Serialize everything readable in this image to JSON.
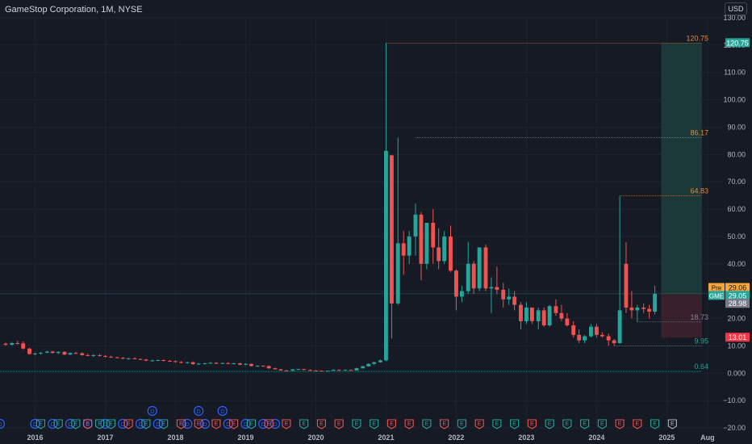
{
  "header": {
    "title": "GameStop Corporation, 1M, NYSE",
    "currency_label": "USD"
  },
  "chart_data": {
    "type": "candlestick",
    "ylim": [
      -20,
      130
    ],
    "y_ticks": [
      130,
      120,
      110,
      100,
      90,
      80,
      70,
      60,
      50,
      40,
      30,
      20,
      10,
      0,
      -10,
      -20
    ],
    "y_tick_labels": [
      "130.00",
      "120.00",
      "110.00",
      "100.00",
      "90.00",
      "80.00",
      "70.00",
      "60.00",
      "50.00",
      "40.00",
      "30.00",
      "20.00",
      "10.00",
      "0.000",
      "−10.00",
      "−20.00"
    ],
    "x_start": 2015.5,
    "x_end": 2025.8,
    "x_ticks": [
      {
        "year": 2016,
        "label": "2016"
      },
      {
        "year": 2017,
        "label": "2017"
      },
      {
        "year": 2018,
        "label": "2018"
      },
      {
        "year": 2019,
        "label": "2019"
      },
      {
        "year": 2020,
        "label": "2020"
      },
      {
        "year": 2021,
        "label": "2021"
      },
      {
        "year": 2022,
        "label": "2022"
      },
      {
        "year": 2023,
        "label": "2023"
      },
      {
        "year": 2024,
        "label": "2024"
      },
      {
        "year": 2025,
        "label": "2025"
      },
      {
        "year": 2025.58,
        "label": "Aug"
      }
    ],
    "candles": [
      {
        "t": 2015.58,
        "o": 10.8,
        "h": 11.2,
        "l": 10.0,
        "c": 10.4
      },
      {
        "t": 2015.67,
        "o": 10.4,
        "h": 11.4,
        "l": 10.1,
        "c": 11.0
      },
      {
        "t": 2015.75,
        "o": 11.0,
        "h": 11.8,
        "l": 10.5,
        "c": 10.9
      },
      {
        "t": 2015.83,
        "o": 10.9,
        "h": 11.6,
        "l": 8.7,
        "c": 9.0
      },
      {
        "t": 2015.92,
        "o": 9.0,
        "h": 9.3,
        "l": 6.8,
        "c": 7.0
      },
      {
        "t": 2016.0,
        "o": 7.0,
        "h": 7.5,
        "l": 6.5,
        "c": 7.2
      },
      {
        "t": 2016.08,
        "o": 7.2,
        "h": 7.7,
        "l": 6.8,
        "c": 7.5
      },
      {
        "t": 2016.17,
        "o": 7.5,
        "h": 8.2,
        "l": 7.3,
        "c": 7.9
      },
      {
        "t": 2016.25,
        "o": 7.9,
        "h": 8.2,
        "l": 7.2,
        "c": 7.4
      },
      {
        "t": 2016.33,
        "o": 7.4,
        "h": 8.0,
        "l": 7.0,
        "c": 7.8
      },
      {
        "t": 2016.42,
        "o": 7.8,
        "h": 8.0,
        "l": 6.6,
        "c": 6.8
      },
      {
        "t": 2016.5,
        "o": 6.8,
        "h": 7.6,
        "l": 6.6,
        "c": 7.4
      },
      {
        "t": 2016.58,
        "o": 7.4,
        "h": 7.8,
        "l": 7.0,
        "c": 7.3
      },
      {
        "t": 2016.67,
        "o": 7.3,
        "h": 7.6,
        "l": 6.4,
        "c": 6.6
      },
      {
        "t": 2016.75,
        "o": 6.6,
        "h": 7.1,
        "l": 6.2,
        "c": 6.4
      },
      {
        "t": 2016.83,
        "o": 6.4,
        "h": 6.9,
        "l": 5.9,
        "c": 6.6
      },
      {
        "t": 2016.92,
        "o": 6.6,
        "h": 7.0,
        "l": 6.1,
        "c": 6.3
      },
      {
        "t": 2017.0,
        "o": 6.3,
        "h": 6.6,
        "l": 5.8,
        "c": 6.0
      },
      {
        "t": 2017.08,
        "o": 6.0,
        "h": 6.4,
        "l": 5.6,
        "c": 5.8
      },
      {
        "t": 2017.17,
        "o": 5.8,
        "h": 6.0,
        "l": 5.4,
        "c": 5.6
      },
      {
        "t": 2017.25,
        "o": 5.6,
        "h": 5.9,
        "l": 5.1,
        "c": 5.3
      },
      {
        "t": 2017.33,
        "o": 5.3,
        "h": 5.6,
        "l": 5.0,
        "c": 5.4
      },
      {
        "t": 2017.42,
        "o": 5.4,
        "h": 5.8,
        "l": 5.1,
        "c": 5.2
      },
      {
        "t": 2017.5,
        "o": 5.2,
        "h": 5.4,
        "l": 4.8,
        "c": 5.0
      },
      {
        "t": 2017.58,
        "o": 5.0,
        "h": 5.2,
        "l": 4.4,
        "c": 4.6
      },
      {
        "t": 2017.67,
        "o": 4.6,
        "h": 4.9,
        "l": 4.2,
        "c": 4.7
      },
      {
        "t": 2017.75,
        "o": 4.7,
        "h": 5.0,
        "l": 4.4,
        "c": 4.8
      },
      {
        "t": 2017.83,
        "o": 4.8,
        "h": 5.0,
        "l": 4.3,
        "c": 4.5
      },
      {
        "t": 2017.92,
        "o": 4.5,
        "h": 4.8,
        "l": 4.2,
        "c": 4.4
      },
      {
        "t": 2018.0,
        "o": 4.4,
        "h": 4.7,
        "l": 3.9,
        "c": 4.1
      },
      {
        "t": 2018.08,
        "o": 4.1,
        "h": 4.4,
        "l": 3.6,
        "c": 3.8
      },
      {
        "t": 2018.17,
        "o": 3.8,
        "h": 4.2,
        "l": 3.5,
        "c": 4.0
      },
      {
        "t": 2018.25,
        "o": 4.0,
        "h": 4.3,
        "l": 3.1,
        "c": 3.3
      },
      {
        "t": 2018.33,
        "o": 3.3,
        "h": 3.7,
        "l": 3.0,
        "c": 3.5
      },
      {
        "t": 2018.42,
        "o": 3.5,
        "h": 3.8,
        "l": 3.2,
        "c": 3.6
      },
      {
        "t": 2018.5,
        "o": 3.6,
        "h": 4.0,
        "l": 3.4,
        "c": 3.8
      },
      {
        "t": 2018.58,
        "o": 3.8,
        "h": 4.0,
        "l": 3.3,
        "c": 3.5
      },
      {
        "t": 2018.67,
        "o": 3.5,
        "h": 3.9,
        "l": 3.3,
        "c": 3.7
      },
      {
        "t": 2018.75,
        "o": 3.7,
        "h": 4.0,
        "l": 3.3,
        "c": 3.4
      },
      {
        "t": 2018.83,
        "o": 3.4,
        "h": 3.8,
        "l": 3.2,
        "c": 3.6
      },
      {
        "t": 2018.92,
        "o": 3.6,
        "h": 3.8,
        "l": 2.9,
        "c": 3.1
      },
      {
        "t": 2019.0,
        "o": 3.1,
        "h": 3.6,
        "l": 2.9,
        "c": 3.4
      },
      {
        "t": 2019.08,
        "o": 3.4,
        "h": 3.5,
        "l": 2.5,
        "c": 2.6
      },
      {
        "t": 2019.17,
        "o": 2.6,
        "h": 2.9,
        "l": 2.4,
        "c": 2.7
      },
      {
        "t": 2019.25,
        "o": 2.7,
        "h": 2.9,
        "l": 2.5,
        "c": 2.6
      },
      {
        "t": 2019.33,
        "o": 2.6,
        "h": 2.8,
        "l": 1.6,
        "c": 1.8
      },
      {
        "t": 2019.42,
        "o": 1.8,
        "h": 2.0,
        "l": 1.3,
        "c": 1.4
      },
      {
        "t": 2019.5,
        "o": 1.4,
        "h": 1.6,
        "l": 0.9,
        "c": 1.0
      },
      {
        "t": 2019.58,
        "o": 1.0,
        "h": 1.2,
        "l": 0.8,
        "c": 0.9
      },
      {
        "t": 2019.67,
        "o": 0.9,
        "h": 1.5,
        "l": 0.8,
        "c": 1.4
      },
      {
        "t": 2019.75,
        "o": 1.4,
        "h": 1.6,
        "l": 1.2,
        "c": 1.5
      },
      {
        "t": 2019.83,
        "o": 1.5,
        "h": 1.6,
        "l": 1.1,
        "c": 1.2
      },
      {
        "t": 2019.92,
        "o": 1.2,
        "h": 1.4,
        "l": 0.9,
        "c": 1.0
      },
      {
        "t": 2020.0,
        "o": 1.0,
        "h": 1.1,
        "l": 0.8,
        "c": 0.9
      },
      {
        "t": 2020.08,
        "o": 0.9,
        "h": 1.0,
        "l": 0.7,
        "c": 0.8
      },
      {
        "t": 2020.17,
        "o": 0.8,
        "h": 0.9,
        "l": 0.64,
        "c": 0.88
      },
      {
        "t": 2020.25,
        "o": 0.88,
        "h": 1.4,
        "l": 0.85,
        "c": 1.2
      },
      {
        "t": 2020.33,
        "o": 1.2,
        "h": 1.4,
        "l": 1.0,
        "c": 1.1
      },
      {
        "t": 2020.42,
        "o": 1.1,
        "h": 1.3,
        "l": 1.0,
        "c": 1.2
      },
      {
        "t": 2020.5,
        "o": 1.2,
        "h": 1.3,
        "l": 1.0,
        "c": 1.0
      },
      {
        "t": 2020.58,
        "o": 1.0,
        "h": 2.0,
        "l": 1.0,
        "c": 1.8
      },
      {
        "t": 2020.67,
        "o": 1.8,
        "h": 2.8,
        "l": 1.7,
        "c": 2.5
      },
      {
        "t": 2020.75,
        "o": 2.5,
        "h": 3.6,
        "l": 2.4,
        "c": 3.4
      },
      {
        "t": 2020.83,
        "o": 3.4,
        "h": 4.2,
        "l": 3.0,
        "c": 4.0
      },
      {
        "t": 2020.92,
        "o": 4.0,
        "h": 5.0,
        "l": 3.8,
        "c": 4.7
      },
      {
        "t": 2021.0,
        "o": 4.7,
        "h": 120.75,
        "l": 4.4,
        "c": 81.3
      },
      {
        "t": 2021.08,
        "o": 79.7,
        "h": 79.7,
        "l": 12.7,
        "c": 25.5
      },
      {
        "t": 2021.17,
        "o": 25.5,
        "h": 86.17,
        "l": 25.0,
        "c": 47.5
      },
      {
        "t": 2021.25,
        "o": 47.5,
        "h": 52.0,
        "l": 36.0,
        "c": 43.0
      },
      {
        "t": 2021.33,
        "o": 43.0,
        "h": 52.0,
        "l": 40.0,
        "c": 50.0
      },
      {
        "t": 2021.42,
        "o": 50.0,
        "h": 62.0,
        "l": 43.0,
        "c": 58.0
      },
      {
        "t": 2021.5,
        "o": 58.0,
        "h": 59.0,
        "l": 34.0,
        "c": 40.0
      },
      {
        "t": 2021.58,
        "o": 40.0,
        "h": 55.0,
        "l": 38.0,
        "c": 55.0
      },
      {
        "t": 2021.67,
        "o": 55.0,
        "h": 60.0,
        "l": 40.0,
        "c": 46.0
      },
      {
        "t": 2021.75,
        "o": 46.0,
        "h": 53.0,
        "l": 38.0,
        "c": 41.0
      },
      {
        "t": 2021.83,
        "o": 41.0,
        "h": 52.0,
        "l": 40.0,
        "c": 50.0
      },
      {
        "t": 2021.92,
        "o": 50.0,
        "h": 54.0,
        "l": 37.0,
        "c": 37.5
      },
      {
        "t": 2022.0,
        "o": 37.5,
        "h": 38.0,
        "l": 23.0,
        "c": 28.0
      },
      {
        "t": 2022.08,
        "o": 28.0,
        "h": 32.0,
        "l": 26.0,
        "c": 30.0
      },
      {
        "t": 2022.17,
        "o": 30.0,
        "h": 48.0,
        "l": 29.0,
        "c": 40.0
      },
      {
        "t": 2022.25,
        "o": 40.0,
        "h": 41.0,
        "l": 29.0,
        "c": 31.0
      },
      {
        "t": 2022.33,
        "o": 31.0,
        "h": 46.0,
        "l": 30.0,
        "c": 46.0
      },
      {
        "t": 2022.42,
        "o": 46.0,
        "h": 47.0,
        "l": 30.0,
        "c": 31.0
      },
      {
        "t": 2022.5,
        "o": 31.0,
        "h": 35.0,
        "l": 22.0,
        "c": 31.5
      },
      {
        "t": 2022.58,
        "o": 31.5,
        "h": 39.0,
        "l": 29.0,
        "c": 30.5
      },
      {
        "t": 2022.67,
        "o": 30.5,
        "h": 33.0,
        "l": 24.0,
        "c": 27.0
      },
      {
        "t": 2022.75,
        "o": 27.0,
        "h": 31.0,
        "l": 25.0,
        "c": 28.0
      },
      {
        "t": 2022.83,
        "o": 28.0,
        "h": 30.0,
        "l": 23.0,
        "c": 25.0
      },
      {
        "t": 2022.92,
        "o": 25.0,
        "h": 26.0,
        "l": 16.0,
        "c": 19.0
      },
      {
        "t": 2023.0,
        "o": 19.0,
        "h": 26.0,
        "l": 18.0,
        "c": 24.0
      },
      {
        "t": 2023.08,
        "o": 24.0,
        "h": 24.0,
        "l": 18.0,
        "c": 19.0
      },
      {
        "t": 2023.17,
        "o": 19.0,
        "h": 24.0,
        "l": 16.0,
        "c": 23.0
      },
      {
        "t": 2023.25,
        "o": 23.0,
        "h": 24.0,
        "l": 17.0,
        "c": 17.5
      },
      {
        "t": 2023.33,
        "o": 17.5,
        "h": 25.0,
        "l": 17.0,
        "c": 24.5
      },
      {
        "t": 2023.42,
        "o": 24.5,
        "h": 27.0,
        "l": 21.0,
        "c": 22.0
      },
      {
        "t": 2023.5,
        "o": 22.0,
        "h": 25.0,
        "l": 19.0,
        "c": 20.0
      },
      {
        "t": 2023.58,
        "o": 20.0,
        "h": 22.0,
        "l": 17.0,
        "c": 17.5
      },
      {
        "t": 2023.67,
        "o": 17.5,
        "h": 19.0,
        "l": 13.0,
        "c": 14.0
      },
      {
        "t": 2023.75,
        "o": 14.0,
        "h": 16.0,
        "l": 11.0,
        "c": 12.0
      },
      {
        "t": 2023.83,
        "o": 12.0,
        "h": 14.0,
        "l": 11.0,
        "c": 13.5
      },
      {
        "t": 2023.92,
        "o": 13.5,
        "h": 18.0,
        "l": 13.0,
        "c": 17.0
      },
      {
        "t": 2024.0,
        "o": 17.0,
        "h": 18.0,
        "l": 13.0,
        "c": 14.0
      },
      {
        "t": 2024.08,
        "o": 14.0,
        "h": 15.0,
        "l": 13.0,
        "c": 13.5
      },
      {
        "t": 2024.17,
        "o": 13.5,
        "h": 14.5,
        "l": 10.0,
        "c": 12.0
      },
      {
        "t": 2024.25,
        "o": 12.0,
        "h": 12.5,
        "l": 9.95,
        "c": 11.0
      },
      {
        "t": 2024.33,
        "o": 11.0,
        "h": 64.83,
        "l": 10.8,
        "c": 23.0
      },
      {
        "t": 2024.42,
        "o": 40.0,
        "h": 48.0,
        "l": 22.0,
        "c": 24.0
      },
      {
        "t": 2024.5,
        "o": 24.0,
        "h": 30.0,
        "l": 20.0,
        "c": 23.0
      },
      {
        "t": 2024.58,
        "o": 23.0,
        "h": 25.0,
        "l": 18.73,
        "c": 24.0
      },
      {
        "t": 2024.67,
        "o": 24.0,
        "h": 25.5,
        "l": 22.0,
        "c": 23.5
      },
      {
        "t": 2024.75,
        "o": 23.5,
        "h": 25.0,
        "l": 20.0,
        "c": 22.5
      },
      {
        "t": 2024.83,
        "o": 22.5,
        "h": 32.0,
        "l": 21.5,
        "c": 29.05
      }
    ],
    "up_color": "#26a69a",
    "down_color": "#ef5350",
    "pre_line_y": 29.05,
    "position": {
      "entry": 29.05,
      "target": 120.75,
      "stop": 13.01,
      "x_from": 2024.92,
      "x_to": 2025.5,
      "profit_fill": "#1b3b39",
      "loss_fill": "#3b222c"
    },
    "hlines": [
      {
        "y": 120.75,
        "x_from": 2021.0,
        "label": "120.75",
        "color": "#e3893a"
      },
      {
        "y": 86.17,
        "x_from": 2021.42,
        "label": "86.17",
        "color": "#e3893a"
      },
      {
        "y": 64.83,
        "x_from": 2024.33,
        "label": "64.83",
        "color": "#e3893a"
      },
      {
        "y": 18.73,
        "x_from": 2024.58,
        "label": "18.73",
        "color": "#7e8596"
      },
      {
        "y": 9.95,
        "x_from": 2024.25,
        "label": "9.95",
        "color": "#26a69a"
      },
      {
        "y": 0.64,
        "x_from": 2015.5,
        "label": "0.64",
        "color": "#26a69a"
      }
    ],
    "price_tags": [
      {
        "y": 120.75,
        "text": "120.75",
        "bg": "#26a69a",
        "color": "#ffffff"
      },
      {
        "y": 31.2,
        "text": "29.06",
        "prefix": "Pre",
        "bg": "#f7a83a",
        "color": "#131722"
      },
      {
        "y": 28.3,
        "text": "29.05",
        "prefix": "GME",
        "bg": "#26a69a",
        "color": "#ffffff"
      },
      {
        "y": 25.4,
        "text": "28.98",
        "bg": "#787b86",
        "color": "#ffffff"
      },
      {
        "y": 13.01,
        "text": "13.01",
        "bg": "#f23645",
        "color": "#ffffff"
      }
    ],
    "dividend_markers": [
      2016.0,
      2016.25,
      2016.5,
      2016.75,
      2017.0,
      2017.25,
      2017.5,
      2017.75,
      2018.17,
      2018.42,
      2018.75,
      2019.0,
      2019.25,
      2019.42
    ],
    "dividend_markers_upper": [
      2017.67,
      2018.33,
      2018.67
    ],
    "earnings_markers": [
      {
        "t": 2016.08,
        "c": "green"
      },
      {
        "t": 2016.33,
        "c": "green"
      },
      {
        "t": 2016.58,
        "c": "green"
      },
      {
        "t": 2016.75,
        "c": "red"
      },
      {
        "t": 2016.92,
        "c": "green"
      },
      {
        "t": 2017.08,
        "c": "green"
      },
      {
        "t": 2017.33,
        "c": "red"
      },
      {
        "t": 2017.58,
        "c": "green"
      },
      {
        "t": 2017.83,
        "c": "green"
      },
      {
        "t": 2018.08,
        "c": "red"
      },
      {
        "t": 2018.33,
        "c": "red"
      },
      {
        "t": 2018.58,
        "c": "red"
      },
      {
        "t": 2018.83,
        "c": "red"
      },
      {
        "t": 2019.08,
        "c": "green"
      },
      {
        "t": 2019.33,
        "c": "red"
      },
      {
        "t": 2019.58,
        "c": "red"
      },
      {
        "t": 2019.83,
        "c": "green"
      },
      {
        "t": 2020.08,
        "c": "red"
      },
      {
        "t": 2020.33,
        "c": "red"
      },
      {
        "t": 2020.58,
        "c": "green"
      },
      {
        "t": 2020.83,
        "c": "green"
      },
      {
        "t": 2021.08,
        "c": "red"
      },
      {
        "t": 2021.33,
        "c": "red"
      },
      {
        "t": 2021.58,
        "c": "green"
      },
      {
        "t": 2021.83,
        "c": "red"
      },
      {
        "t": 2022.08,
        "c": "green"
      },
      {
        "t": 2022.33,
        "c": "red"
      },
      {
        "t": 2022.58,
        "c": "green"
      },
      {
        "t": 2022.83,
        "c": "green"
      },
      {
        "t": 2023.08,
        "c": "red"
      },
      {
        "t": 2023.33,
        "c": "green"
      },
      {
        "t": 2023.58,
        "c": "green"
      },
      {
        "t": 2023.83,
        "c": "green"
      },
      {
        "t": 2024.08,
        "c": "green"
      },
      {
        "t": 2024.33,
        "c": "red"
      },
      {
        "t": 2024.58,
        "c": "red"
      },
      {
        "t": 2024.83,
        "c": "green"
      },
      {
        "t": 2025.08,
        "c": "gray"
      }
    ],
    "earnings_label": "E",
    "dividend_label": "D",
    "pre_label": "Pre"
  }
}
